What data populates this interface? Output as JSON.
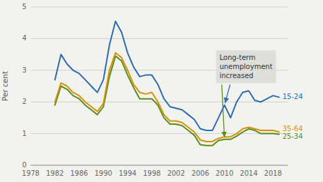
{
  "chart_data": {
    "type": "line",
    "y_label": "Per cent",
    "x": [
      1982,
      1983,
      1984,
      1985,
      1986,
      1987,
      1988,
      1989,
      1990,
      1991,
      1992,
      1993,
      1994,
      1995,
      1996,
      1997,
      1998,
      1999,
      2000,
      2001,
      2002,
      2003,
      2004,
      2005,
      2006,
      2007,
      2008,
      2009,
      2010,
      2011,
      2012,
      2013,
      2014,
      2015,
      2016,
      2017,
      2018,
      2019
    ],
    "series": [
      {
        "name": "15-24",
        "color": "#2b6cb0",
        "values": [
          2.7,
          3.5,
          3.2,
          3.0,
          2.9,
          2.7,
          2.5,
          2.3,
          2.7,
          3.8,
          4.55,
          4.2,
          3.55,
          3.1,
          2.8,
          2.85,
          2.85,
          2.55,
          2.1,
          1.85,
          1.8,
          1.75,
          1.6,
          1.45,
          1.15,
          1.1,
          1.1,
          1.5,
          1.9,
          1.5,
          2.0,
          2.3,
          2.35,
          2.05,
          2.0,
          2.1,
          2.2,
          2.15
        ]
      },
      {
        "name": "35-64",
        "color": "#d4920a",
        "values": [
          2.0,
          2.6,
          2.5,
          2.3,
          2.2,
          2.0,
          1.85,
          1.7,
          1.95,
          3.0,
          3.55,
          3.4,
          3.0,
          2.55,
          2.3,
          2.25,
          2.3,
          2.0,
          1.6,
          1.4,
          1.4,
          1.35,
          1.2,
          1.05,
          0.8,
          0.75,
          0.75,
          0.85,
          0.9,
          0.9,
          1.0,
          1.15,
          1.2,
          1.15,
          1.1,
          1.1,
          1.1,
          1.05
        ]
      },
      {
        "name": "25-34",
        "color": "#5a8c1e",
        "values": [
          1.9,
          2.5,
          2.4,
          2.2,
          2.1,
          1.9,
          1.75,
          1.6,
          1.85,
          2.8,
          3.45,
          3.3,
          2.85,
          2.45,
          2.1,
          2.1,
          2.1,
          1.9,
          1.5,
          1.3,
          1.3,
          1.25,
          1.1,
          0.95,
          0.65,
          0.62,
          0.62,
          0.78,
          0.82,
          0.82,
          0.92,
          1.05,
          1.15,
          1.1,
          1.0,
          1.0,
          1.0,
          0.98
        ]
      }
    ],
    "xlim": [
      1978,
      2020.5
    ],
    "xticks": [
      1978,
      1982,
      1986,
      1990,
      1994,
      1998,
      2002,
      2006,
      2010,
      2014,
      2018
    ],
    "ylim": [
      0,
      5
    ],
    "yticks": [
      0,
      1,
      2,
      3,
      4,
      5
    ],
    "grid": "y",
    "annotations": [
      {
        "text": "Long-term\nunemployment\nincreased"
      }
    ]
  }
}
